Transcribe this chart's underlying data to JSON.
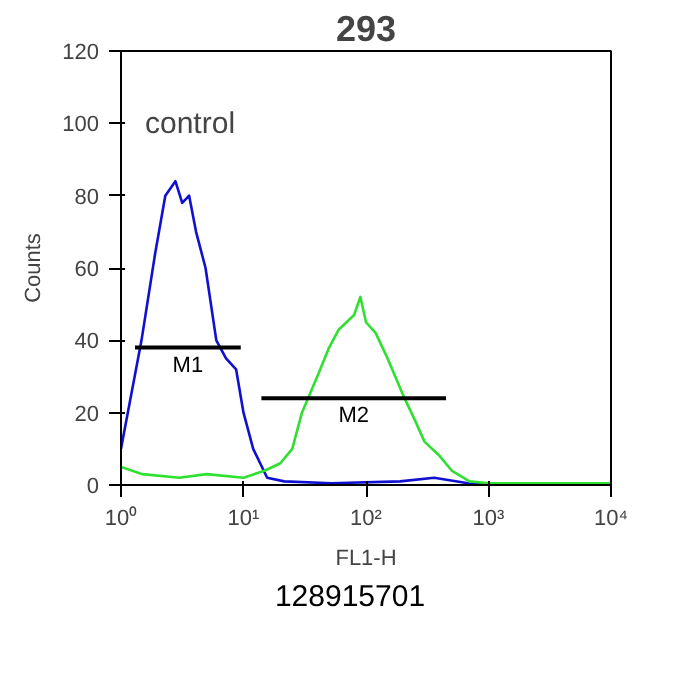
{
  "chart_data": {
    "type": "line",
    "title": "293",
    "xlabel": "FL1-H",
    "ylabel": "Counts",
    "log": "x",
    "grid": false,
    "xlim": [
      1,
      10000
    ],
    "ylim": [
      0,
      120
    ],
    "xticks": [
      {
        "value": 1,
        "label": "10⁰"
      },
      {
        "value": 10,
        "label": "10¹"
      },
      {
        "value": 100,
        "label": "10²"
      },
      {
        "value": 1000,
        "label": "10³"
      },
      {
        "value": 10000,
        "label": "10⁴"
      }
    ],
    "yticks": [
      0,
      20,
      40,
      60,
      80,
      100,
      120
    ],
    "series": [
      {
        "color": "#1010d0",
        "x": [
          1.0,
          1.47,
          1.9,
          2.3,
          2.78,
          3.16,
          3.6,
          4.1,
          4.9,
          6,
          7.2,
          8.7,
          10,
          12,
          15.6,
          21.5,
          52,
          190,
          360,
          680,
          10000
        ],
        "values": [
          10,
          40,
          64,
          80,
          84,
          78,
          80,
          70,
          60,
          40,
          35,
          32,
          20,
          10,
          2,
          1,
          0.5,
          1,
          2,
          0.5,
          0
        ]
      },
      {
        "color": "#30e030",
        "x": [
          1.0,
          1.5,
          3,
          5,
          10,
          15,
          20,
          25,
          30,
          40,
          50,
          60,
          80,
          90,
          100,
          120,
          150,
          200,
          250,
          300,
          400,
          500,
          700,
          1000,
          10000
        ],
        "values": [
          5,
          3,
          2,
          3,
          2,
          4,
          6,
          10,
          20,
          30,
          38,
          43,
          47,
          52,
          45,
          42,
          35,
          25,
          18,
          12,
          8,
          4,
          1,
          0.5,
          0.5
        ]
      },
      {
        "name": "M1",
        "color": "#000000",
        "x": [
          1.3,
          9.5
        ],
        "values": [
          38,
          38
        ]
      },
      {
        "name": "M2",
        "color": "#000000",
        "x": [
          14,
          450
        ],
        "values": [
          24,
          24
        ]
      }
    ],
    "annotations": [
      "control",
      "128915701"
    ]
  }
}
